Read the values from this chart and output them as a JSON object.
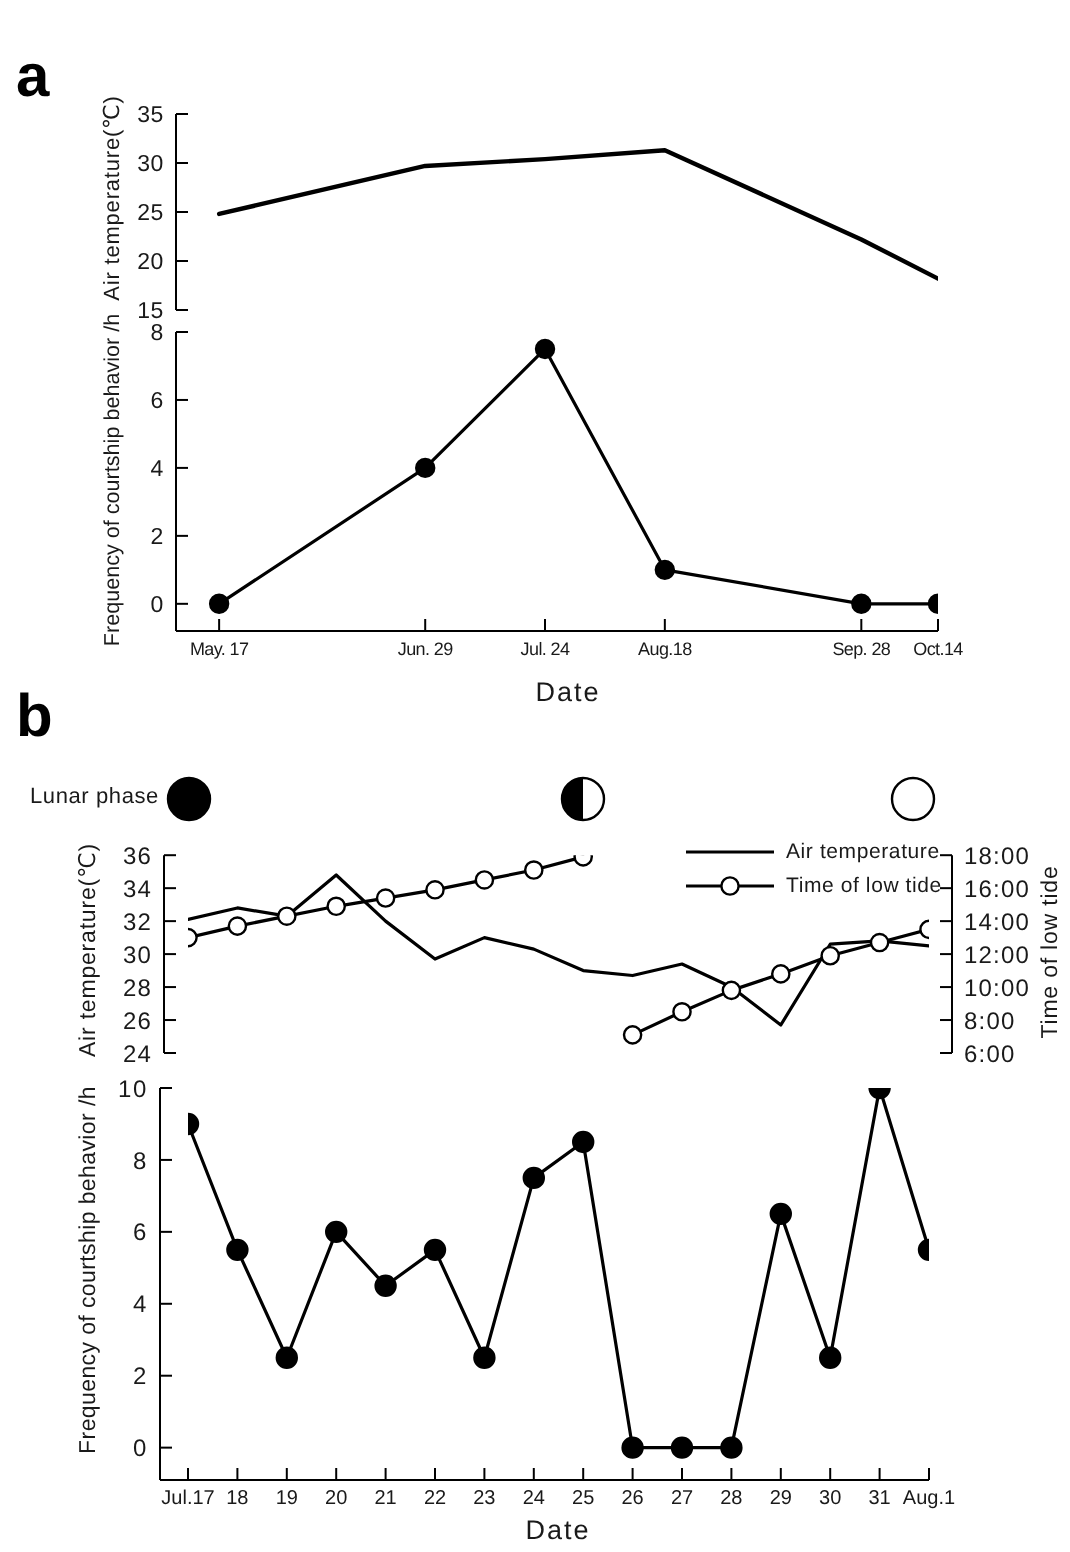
{
  "chart_data": [
    {
      "type": "line",
      "title": "a",
      "ylabel": "Air temperature(℃)",
      "x": [
        "--05-17",
        "--06-29",
        "--07-24",
        "--08-18",
        "--09-28",
        "--10-14"
      ],
      "values": [
        24.8,
        29.7,
        30.4,
        31.3,
        22.2,
        18.2
      ],
      "color": "#000000",
      "marker": "none",
      "xlim": [
        "--05-08",
        "--10-14"
      ],
      "ylim": [
        15,
        35
      ],
      "yticks": [
        15,
        20,
        25,
        30,
        35
      ],
      "tick_labels": "y"
    },
    {
      "type": "line",
      "xlabel": "Date",
      "ylabel": "Frequency of courtship behavior /h",
      "x": [
        "--05-17",
        "--06-29",
        "--07-24",
        "--08-18",
        "--09-28",
        "--10-14"
      ],
      "values": [
        0,
        4,
        7.5,
        1,
        0,
        0
      ],
      "color": "#000000",
      "marker": "circle",
      "xlim": [
        "--05-08",
        "--10-14"
      ],
      "xticks": [
        {
          "value": "--05-17",
          "label": "May. 17"
        },
        {
          "value": "--06-29",
          "label": "Jun. 29"
        },
        {
          "value": "--07-24",
          "label": "Jul. 24"
        },
        {
          "value": "--08-18",
          "label": "Aug.18"
        },
        {
          "value": "--09-28",
          "label": "Sep. 28"
        },
        {
          "value": "--10-14",
          "label": "Oct.14"
        }
      ],
      "ylim": [
        -0.8,
        8
      ],
      "yticks": [
        0,
        2,
        4,
        6,
        8
      ]
    },
    {
      "type": "line",
      "title": "b",
      "ylabel": "Air temperature(℃)",
      "y2label": "Time of low tide",
      "annotations": [
        "Lunar phase"
      ],
      "categories": [
        null,
        null,
        null,
        null,
        null,
        null,
        null,
        null,
        null,
        null,
        null,
        null,
        null,
        null,
        null,
        null
      ],
      "series": [
        {
          "name": "Air temperature",
          "color": "#000000",
          "marker": "none",
          "values": [
            32.1,
            32.8,
            32.3,
            34.8,
            32.0,
            29.7,
            31.0,
            30.3,
            29.0,
            28.7,
            29.4,
            28.0,
            25.7,
            30.6,
            30.8,
            30.5
          ]
        },
        {
          "name": "Time of low tide",
          "color": "#000000",
          "marker": "circle",
          "axis": "y2",
          "values": [
            13.0,
            13.7,
            14.3,
            14.9,
            15.4,
            15.9,
            16.5,
            17.1,
            17.9,
            null,
            null,
            null,
            null,
            null,
            null,
            null
          ]
        },
        {
          "color": "#000000",
          "marker": "circle",
          "axis": "y2",
          "values": [
            null,
            null,
            null,
            null,
            null,
            null,
            null,
            null,
            null,
            7.1,
            8.5,
            9.8,
            10.8,
            11.9,
            12.7,
            13.5
          ]
        }
      ],
      "ylim": [
        24,
        36
      ],
      "yticks": [
        24,
        26,
        28,
        30,
        32,
        34,
        36
      ],
      "y2lim": [
        6,
        18
      ],
      "y2ticks": [
        {
          "value": 6,
          "label": "6:00"
        },
        {
          "value": 8,
          "label": "8:00"
        },
        {
          "value": 10,
          "label": "10:00"
        },
        {
          "value": 12,
          "label": "12:00"
        },
        {
          "value": 14,
          "label": "14:00"
        },
        {
          "value": 16,
          "label": "16:00"
        },
        {
          "value": 18,
          "label": "18:00"
        }
      ],
      "legend": "top right",
      "tick_labels": "y"
    },
    {
      "type": "line",
      "xlabel": "Date",
      "ylabel": "Frequency of courtship behavior /h",
      "categories": [
        "Jul.17",
        "18",
        "19",
        "20",
        "21",
        "22",
        "23",
        "24",
        "25",
        "26",
        "27",
        "28",
        "29",
        "30",
        "31",
        "Aug.1"
      ],
      "values": [
        9,
        5.5,
        2.5,
        6,
        4.5,
        5.5,
        2.5,
        7.5,
        8.5,
        0,
        0,
        0,
        6.5,
        2.5,
        10,
        5.5
      ],
      "color": "#000000",
      "marker": "circle",
      "ylim": [
        -0.9,
        10
      ],
      "yticks": [
        0,
        2,
        4,
        6,
        8,
        10
      ]
    }
  ]
}
